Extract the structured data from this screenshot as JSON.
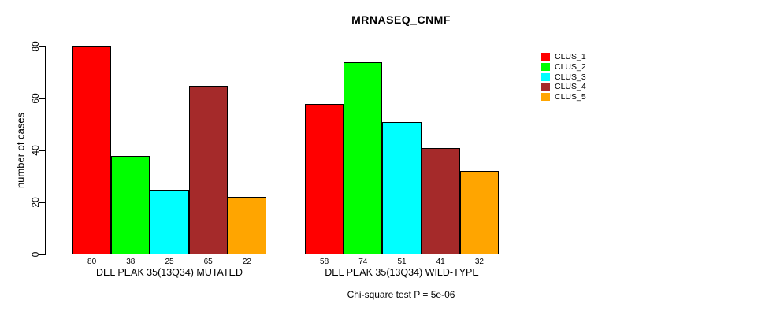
{
  "chart_data": {
    "type": "bar",
    "title": "MRNASEQ_CNMF",
    "ylabel": "number of cases",
    "xlabel": "",
    "ylim": [
      0,
      80
    ],
    "yticks": [
      0,
      20,
      40,
      60,
      80
    ],
    "grid": false,
    "legend_position": "right",
    "categories": [
      "DEL PEAK 35(13Q34) MUTATED",
      "DEL PEAK 35(13Q34) WILD-TYPE"
    ],
    "series": [
      {
        "name": "CLUS_1",
        "color": "#ff0000",
        "values": [
          80,
          58
        ]
      },
      {
        "name": "CLUS_2",
        "color": "#00ff00",
        "values": [
          38,
          74
        ]
      },
      {
        "name": "CLUS_3",
        "color": "#00ffff",
        "values": [
          25,
          51
        ]
      },
      {
        "name": "CLUS_4",
        "color": "#a52a2a",
        "values": [
          65,
          41
        ]
      },
      {
        "name": "CLUS_5",
        "color": "#ffa500",
        "values": [
          22,
          32
        ]
      }
    ],
    "bar_value_labels": {
      "DEL PEAK 35(13Q34) MUTATED": [
        80,
        38,
        25,
        65,
        22
      ],
      "DEL PEAK 35(13Q34) WILD-TYPE": [
        58,
        74,
        51,
        41,
        32
      ]
    },
    "annotation": "Chi-square test P = 5e-06"
  },
  "colors": {
    "background": "#ffffff",
    "axis": "#000000",
    "bar_border": "#000000"
  }
}
